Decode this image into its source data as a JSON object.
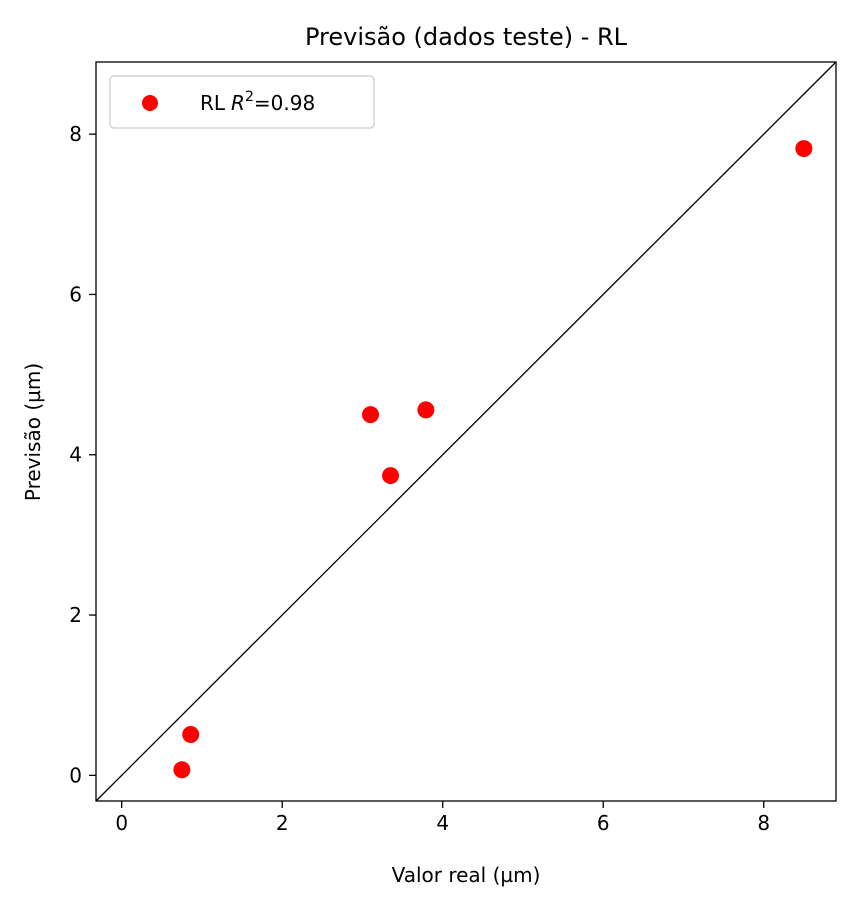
{
  "chart_data": {
    "type": "scatter",
    "title": "Previsão (dados teste) - RL",
    "xlabel": "Valor real (µm)",
    "ylabel": "Previsão (µm)",
    "xlim": [
      -0.32,
      8.9
    ],
    "ylim": [
      -0.32,
      8.9
    ],
    "xticks": [
      0,
      2,
      4,
      6,
      8
    ],
    "yticks": [
      0,
      2,
      4,
      6,
      8
    ],
    "grid": false,
    "legend_position": "top-left",
    "identity_line": true,
    "series": [
      {
        "name": "RL",
        "legend_suffix": "=0.98",
        "color": "#ff0000",
        "points": [
          {
            "x": 0.75,
            "y": 0.07
          },
          {
            "x": 0.86,
            "y": 0.51
          },
          {
            "x": 3.1,
            "y": 4.5
          },
          {
            "x": 3.35,
            "y": 3.74
          },
          {
            "x": 3.79,
            "y": 4.56
          },
          {
            "x": 8.5,
            "y": 7.82
          }
        ]
      }
    ]
  }
}
